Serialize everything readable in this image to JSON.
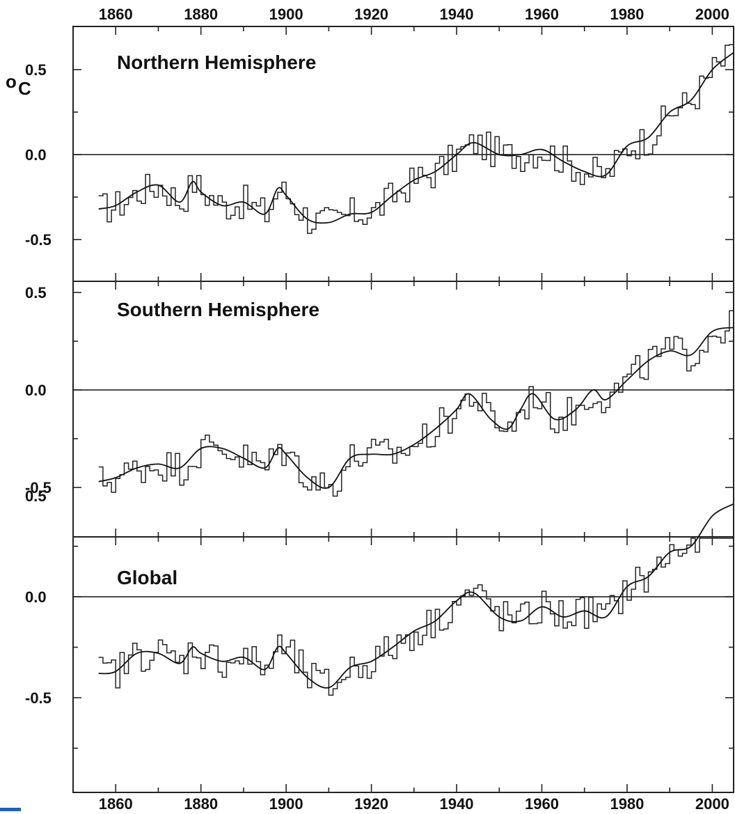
{
  "chart_data": [
    {
      "type": "line",
      "title": "Northern Hemisphere",
      "ylabel_unit_symbol": "o",
      "ylabel_unit_letter": "C",
      "xlim": [
        1850,
        2005
      ],
      "ylim": [
        -0.75,
        0.75
      ],
      "x_ticks": [
        1860,
        1880,
        1900,
        1920,
        1940,
        1960,
        1980,
        2000
      ],
      "y_ticks": [
        "0.5",
        "0.0",
        "-0.5"
      ],
      "anchor_years": [
        1856,
        1860,
        1865,
        1870,
        1875,
        1878,
        1880,
        1885,
        1890,
        1895,
        1898,
        1900,
        1905,
        1910,
        1915,
        1920,
        1925,
        1930,
        1935,
        1940,
        1944,
        1950,
        1955,
        1960,
        1965,
        1970,
        1975,
        1980,
        1985,
        1990,
        1995,
        2000,
        2005
      ],
      "anchor_values": [
        -0.32,
        -0.3,
        -0.22,
        -0.18,
        -0.28,
        -0.16,
        -0.22,
        -0.3,
        -0.28,
        -0.35,
        -0.2,
        -0.24,
        -0.38,
        -0.4,
        -0.35,
        -0.34,
        -0.24,
        -0.15,
        -0.1,
        0.0,
        0.07,
        0.0,
        0.0,
        0.03,
        -0.04,
        -0.1,
        -0.12,
        0.05,
        0.1,
        0.25,
        0.32,
        0.5,
        0.6
      ],
      "annual_spread": 0.1
    },
    {
      "type": "line",
      "title": "Southern Hemisphere",
      "xlim": [
        1850,
        2005
      ],
      "ylim": [
        -0.75,
        0.65
      ],
      "x_ticks": [
        1860,
        1880,
        1900,
        1920,
        1940,
        1960,
        1980,
        2000
      ],
      "y_ticks": [
        "0.5",
        "0.0",
        "-0.5"
      ],
      "anchor_years": [
        1856,
        1860,
        1865,
        1870,
        1875,
        1880,
        1885,
        1890,
        1895,
        1898,
        1900,
        1905,
        1910,
        1915,
        1920,
        1925,
        1930,
        1935,
        1940,
        1943,
        1948,
        1952,
        1955,
        1958,
        1963,
        1968,
        1972,
        1975,
        1980,
        1985,
        1990,
        1995,
        2000,
        2005
      ],
      "anchor_values": [
        -0.47,
        -0.45,
        -0.4,
        -0.38,
        -0.4,
        -0.3,
        -0.3,
        -0.35,
        -0.4,
        -0.3,
        -0.33,
        -0.45,
        -0.5,
        -0.35,
        -0.33,
        -0.33,
        -0.28,
        -0.2,
        -0.1,
        -0.02,
        -0.15,
        -0.2,
        -0.1,
        -0.02,
        -0.15,
        -0.1,
        0.0,
        -0.05,
        0.05,
        0.15,
        0.2,
        0.18,
        0.3,
        0.32
      ],
      "annual_spread": 0.09
    },
    {
      "type": "line",
      "title": "Global",
      "xlim": [
        1850,
        2005
      ],
      "ylim": [
        -0.75,
        0.65
      ],
      "x_ticks": [
        1860,
        1880,
        1900,
        1920,
        1940,
        1960,
        1980,
        2000
      ],
      "y_ticks": [
        "0.5",
        "0.0",
        "-0.5"
      ],
      "anchor_years": [
        1856,
        1860,
        1865,
        1870,
        1875,
        1878,
        1880,
        1885,
        1890,
        1895,
        1898,
        1900,
        1905,
        1910,
        1915,
        1920,
        1925,
        1930,
        1935,
        1940,
        1944,
        1950,
        1955,
        1960,
        1965,
        1970,
        1975,
        1980,
        1985,
        1990,
        1995,
        2000,
        2005
      ],
      "anchor_values": [
        -0.38,
        -0.37,
        -0.28,
        -0.28,
        -0.33,
        -0.25,
        -0.28,
        -0.32,
        -0.3,
        -0.36,
        -0.25,
        -0.28,
        -0.4,
        -0.45,
        -0.35,
        -0.32,
        -0.25,
        -0.17,
        -0.12,
        -0.02,
        0.02,
        -0.1,
        -0.12,
        -0.05,
        -0.1,
        -0.07,
        -0.1,
        0.05,
        0.1,
        0.22,
        0.25,
        0.4,
        0.46
      ],
      "annual_spread": 0.09
    }
  ]
}
